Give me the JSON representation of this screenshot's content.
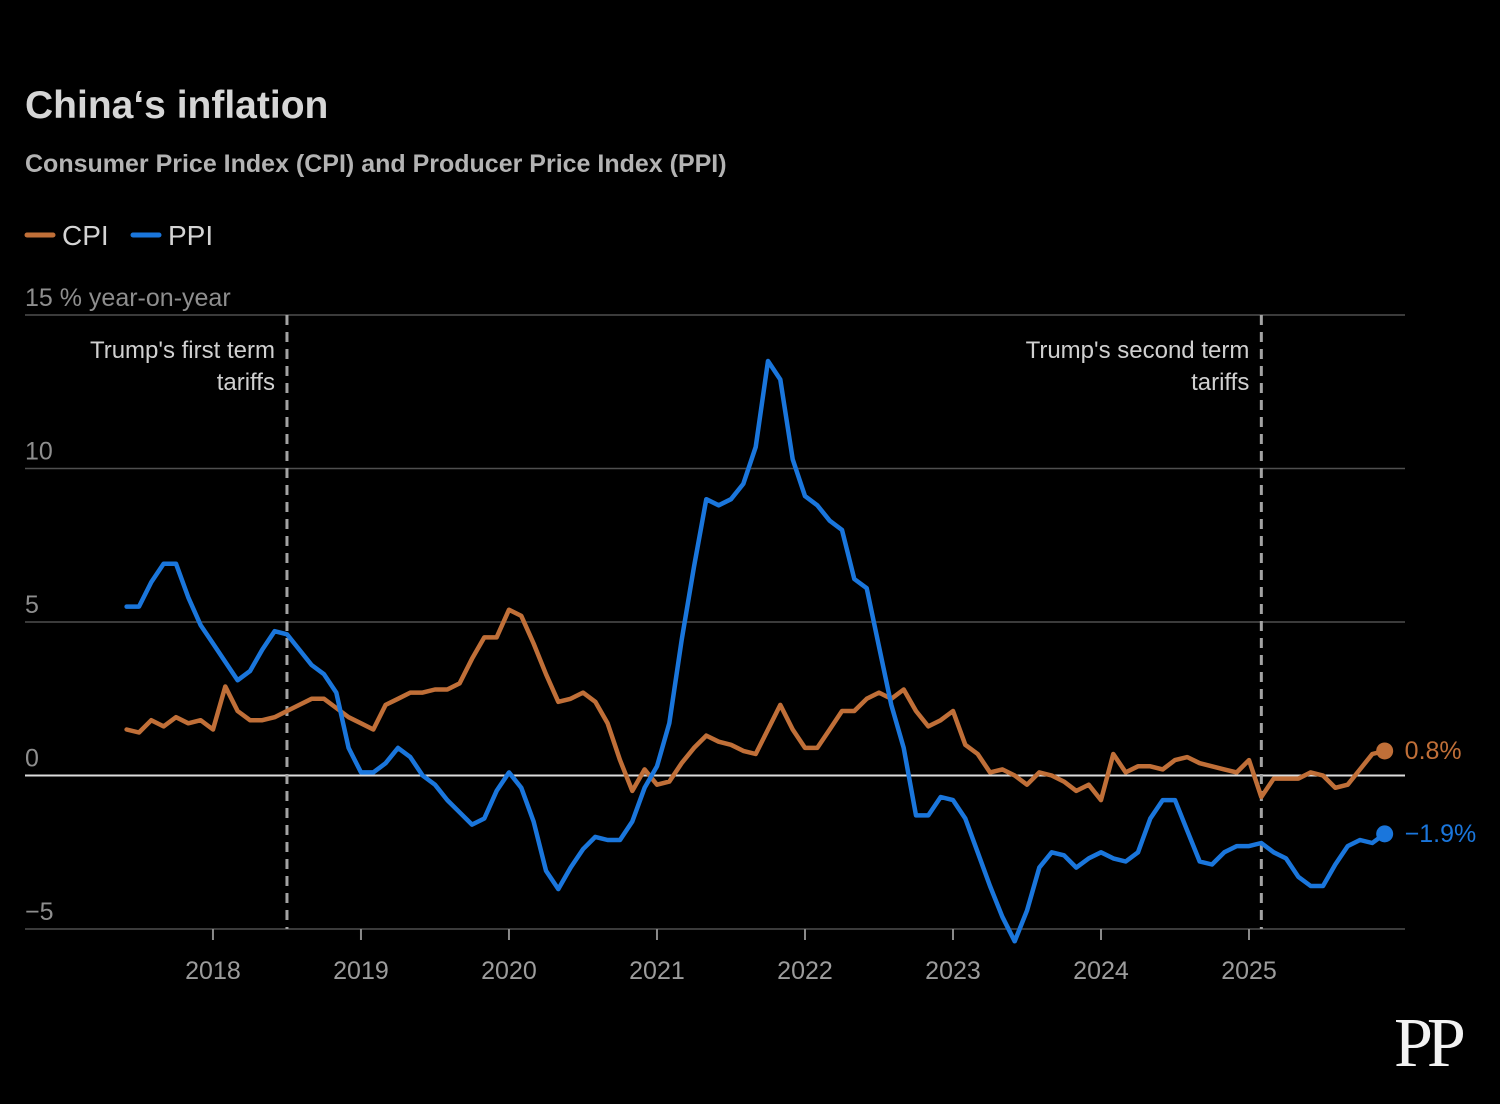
{
  "logo": "PP",
  "chart_data": {
    "type": "line",
    "title": "China‘s inflation",
    "subtitle": "Consumer Price Index (CPI) and Producer Price Index (PPI)",
    "legend_position": "top-left",
    "grid": true,
    "xlim": [
      2016.73,
      2026.054
    ],
    "ylim": [
      -5,
      15
    ],
    "x_ticks": [
      2018,
      2019,
      2020,
      2021,
      2022,
      2023,
      2024,
      2025
    ],
    "y_ticks": [
      {
        "value": 15,
        "label": "15 % year-on-year"
      },
      {
        "value": 10,
        "label": "10"
      },
      {
        "value": 5,
        "label": "5"
      },
      {
        "value": 0,
        "label": "0"
      },
      {
        "value": -5,
        "label": "−5"
      }
    ],
    "start_year": 2017,
    "start_month": 6,
    "series": [
      {
        "name": "CPI",
        "color": "#c06f38",
        "end_label": "0.8%",
        "values": [
          1.5,
          1.4,
          1.8,
          1.6,
          1.9,
          1.7,
          1.8,
          1.5,
          2.9,
          2.1,
          1.8,
          1.8,
          1.9,
          2.1,
          2.3,
          2.5,
          2.5,
          2.2,
          1.9,
          1.7,
          1.5,
          2.3,
          2.5,
          2.7,
          2.7,
          2.8,
          2.8,
          3.0,
          3.8,
          4.5,
          4.5,
          5.4,
          5.2,
          4.3,
          3.3,
          2.4,
          2.5,
          2.7,
          2.4,
          1.7,
          0.5,
          -0.5,
          0.2,
          -0.3,
          -0.2,
          0.4,
          0.9,
          1.3,
          1.1,
          1.0,
          0.8,
          0.7,
          1.5,
          2.3,
          1.5,
          0.9,
          0.9,
          1.5,
          2.1,
          2.1,
          2.5,
          2.7,
          2.5,
          2.8,
          2.1,
          1.6,
          1.8,
          2.1,
          1.0,
          0.7,
          0.1,
          0.2,
          0.0,
          -0.3,
          0.1,
          0.0,
          -0.2,
          -0.5,
          -0.3,
          -0.8,
          0.7,
          0.1,
          0.3,
          0.3,
          0.2,
          0.5,
          0.6,
          0.4,
          0.3,
          0.2,
          0.1,
          0.5,
          -0.7,
          -0.1,
          -0.1,
          -0.1,
          0.1,
          0.0,
          -0.4,
          -0.3,
          0.2,
          0.7,
          0.8
        ]
      },
      {
        "name": "PPI",
        "color": "#1a76dc",
        "end_label": "−1.9%",
        "values": [
          5.5,
          5.5,
          6.3,
          6.9,
          6.9,
          5.8,
          4.9,
          4.3,
          3.7,
          3.1,
          3.4,
          4.1,
          4.7,
          4.6,
          4.1,
          3.6,
          3.3,
          2.7,
          0.9,
          0.1,
          0.1,
          0.4,
          0.9,
          0.6,
          0.0,
          -0.3,
          -0.8,
          -1.2,
          -1.6,
          -1.4,
          -0.5,
          0.1,
          -0.4,
          -1.5,
          -3.1,
          -3.7,
          -3.0,
          -2.4,
          -2.0,
          -2.1,
          -2.1,
          -1.5,
          -0.4,
          0.3,
          1.7,
          4.4,
          6.8,
          9.0,
          8.8,
          9.0,
          9.5,
          10.7,
          13.5,
          12.9,
          10.3,
          9.1,
          8.8,
          8.3,
          8.0,
          6.4,
          6.1,
          4.2,
          2.3,
          0.9,
          -1.3,
          -1.3,
          -0.7,
          -0.8,
          -1.4,
          -2.5,
          -3.6,
          -4.6,
          -5.4,
          -4.4,
          -3.0,
          -2.5,
          -2.6,
          -3.0,
          -2.7,
          -2.5,
          -2.7,
          -2.8,
          -2.5,
          -1.4,
          -0.8,
          -0.8,
          -1.8,
          -2.8,
          -2.9,
          -2.5,
          -2.3,
          -2.3,
          -2.2,
          -2.5,
          -2.7,
          -3.3,
          -3.6,
          -3.6,
          -2.9,
          -2.3,
          -2.1,
          -2.2,
          -1.9
        ]
      }
    ],
    "annotations": [
      {
        "year": 2018,
        "month": 7,
        "text": [
          "Trump's first term",
          "tariffs"
        ]
      },
      {
        "year": 2025,
        "month": 2,
        "text": [
          "Trump's second term",
          "tariffs"
        ]
      }
    ]
  }
}
